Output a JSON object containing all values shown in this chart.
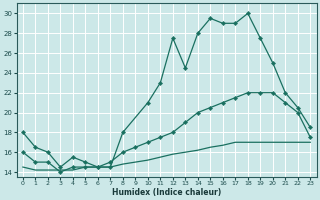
{
  "xlabel": "Humidex (Indice chaleur)",
  "bg_color": "#cce8e8",
  "grid_color": "#ffffff",
  "line_color": "#1a7060",
  "xlim": [
    -0.5,
    23.5
  ],
  "ylim": [
    13.5,
    31
  ],
  "xticks": [
    0,
    1,
    2,
    3,
    4,
    5,
    6,
    7,
    8,
    9,
    10,
    11,
    12,
    13,
    14,
    15,
    16,
    17,
    18,
    19,
    20,
    21,
    22,
    23
  ],
  "yticks": [
    14,
    16,
    18,
    20,
    22,
    24,
    26,
    28,
    30
  ],
  "line1_x": [
    0,
    1,
    2,
    3,
    4,
    5,
    6,
    7,
    8,
    10,
    11,
    12,
    13,
    14,
    15,
    16,
    17,
    18,
    19,
    20,
    21,
    22,
    23
  ],
  "line1_y": [
    18,
    16.5,
    16,
    14.5,
    15.5,
    15,
    14.5,
    14.5,
    18,
    21,
    23,
    27.5,
    24.5,
    28,
    29.5,
    29,
    29,
    30,
    27.5,
    25,
    22,
    20.5,
    18.5
  ],
  "line2_x": [
    0,
    1,
    2,
    3,
    4,
    5,
    6,
    7,
    8,
    9,
    10,
    11,
    12,
    13,
    14,
    15,
    16,
    17,
    18,
    19,
    20,
    21,
    22,
    23
  ],
  "line2_y": [
    16,
    15,
    15,
    14,
    14.5,
    14.5,
    14.5,
    15,
    16,
    16.5,
    17,
    17.5,
    18,
    19,
    20,
    20.5,
    21,
    21.5,
    22,
    22,
    22,
    21,
    20,
    17.5
  ],
  "line3_x": [
    0,
    1,
    2,
    3,
    4,
    5,
    6,
    7,
    8,
    9,
    10,
    11,
    12,
    13,
    14,
    15,
    16,
    17,
    18,
    19,
    20,
    21,
    22,
    23
  ],
  "line3_y": [
    14.5,
    14.2,
    14.2,
    14.2,
    14.2,
    14.5,
    14.5,
    14.5,
    14.8,
    15,
    15.2,
    15.5,
    15.8,
    16,
    16.2,
    16.5,
    16.7,
    17,
    17,
    17,
    17,
    17,
    17,
    17
  ]
}
